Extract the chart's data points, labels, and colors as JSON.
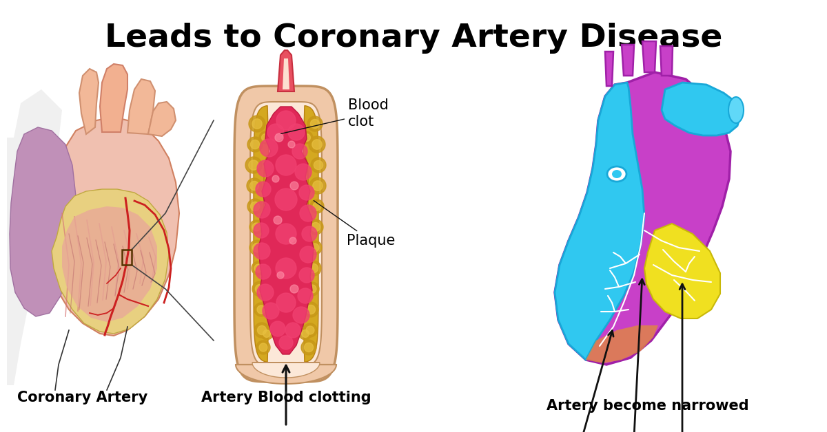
{
  "title": "Leads to Coronary Artery Disease",
  "title_fontsize": 34,
  "title_fontweight": "bold",
  "background_color": "#ffffff",
  "labels": {
    "blood_clot": "Blood\nclot",
    "plaque": "Plaque",
    "coronary_artery": "Coronary Artery",
    "artery_blood_clotting": "Artery Blood clotting",
    "artery_narrowed": "Artery become narrowed"
  },
  "label_fontsize": 14,
  "label_fontweight": "bold",
  "colors": {
    "artery_outer": "#f2c9a8",
    "artery_wall": "#e8a878",
    "plaque_yellow": "#d4a820",
    "plaque_yellow2": "#e8c040",
    "plaque_red": "#e0305a",
    "plaque_red2": "#f05075",
    "heart_purple": "#c040c8",
    "heart_purple2": "#a030a8",
    "heart_blue": "#30c0e8",
    "heart_blue2": "#20a8d0",
    "heart_yellow": "#f0e020",
    "heart_yellow2": "#d8c010",
    "heart_orange": "#e09040",
    "skin_peach": "#f0c0a0",
    "skin_peach2": "#e8a888",
    "skin_pink": "#e8a0a0",
    "skin_pink2": "#d88888",
    "purple_tissue": "#c090c0",
    "dark_outline": "#111111",
    "artery_red": "#cc3030"
  }
}
